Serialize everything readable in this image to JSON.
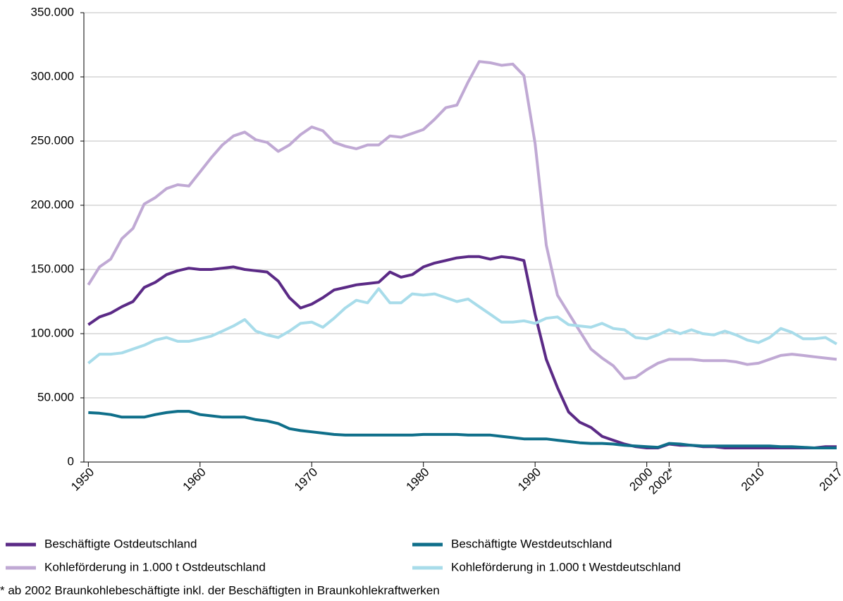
{
  "chart_data": {
    "type": "line",
    "x": [
      1950,
      1951,
      1952,
      1953,
      1954,
      1955,
      1956,
      1957,
      1958,
      1959,
      1960,
      1961,
      1962,
      1963,
      1964,
      1965,
      1966,
      1967,
      1968,
      1969,
      1970,
      1971,
      1972,
      1973,
      1974,
      1975,
      1976,
      1977,
      1978,
      1979,
      1980,
      1981,
      1982,
      1983,
      1984,
      1985,
      1986,
      1987,
      1988,
      1989,
      1990,
      1991,
      1992,
      1993,
      1994,
      1995,
      1996,
      1997,
      1998,
      1999,
      2000,
      2001,
      2002,
      2003,
      2004,
      2005,
      2006,
      2007,
      2008,
      2009,
      2010,
      2011,
      2012,
      2013,
      2014,
      2015,
      2016,
      2017
    ],
    "xlim": [
      1949.6,
      2017
    ],
    "xticks": [
      1950,
      1960,
      1970,
      1980,
      1990,
      2000,
      {
        "value": 2002,
        "label": "2002*"
      },
      2010,
      2017
    ],
    "ylim": [
      0,
      350000
    ],
    "yticks": [
      0,
      {
        "value": 50000,
        "label": "50.000"
      },
      {
        "value": 100000,
        "label": "100.000"
      },
      {
        "value": 150000,
        "label": "150.000"
      },
      {
        "value": 200000,
        "label": "200.000"
      },
      {
        "value": 250000,
        "label": "250.000"
      },
      {
        "value": 300000,
        "label": "300.000"
      },
      {
        "value": 350000,
        "label": "350.000"
      }
    ],
    "grid": true,
    "series": [
      {
        "name": "Beschäftigte Ostdeutschland",
        "color": "#5b2a86",
        "values": [
          107000,
          113000,
          116000,
          121000,
          125000,
          136000,
          140000,
          146000,
          149000,
          151000,
          150000,
          150000,
          151000,
          152000,
          150000,
          149000,
          148000,
          141000,
          128000,
          120000,
          123000,
          128000,
          134000,
          136000,
          138000,
          139000,
          140000,
          148000,
          144000,
          146000,
          152000,
          155000,
          157000,
          159000,
          160000,
          160000,
          158000,
          160000,
          159000,
          157000,
          115000,
          80000,
          58000,
          39000,
          31000,
          27000,
          20000,
          17000,
          14000,
          12000,
          11000,
          11000,
          14000,
          13000,
          13000,
          12000,
          12000,
          11000,
          11000,
          11000,
          11000,
          11000,
          11000,
          11000,
          11000,
          11000,
          12000,
          12000
        ]
      },
      {
        "name": "Beschäftigte Westdeutschland",
        "color": "#0f6f8a",
        "values": [
          38500,
          38000,
          37000,
          35000,
          35000,
          35000,
          37000,
          38500,
          39500,
          39500,
          37000,
          36000,
          35000,
          35000,
          35000,
          33000,
          32000,
          30000,
          26000,
          24500,
          23500,
          22500,
          21500,
          21000,
          21000,
          21000,
          21000,
          21000,
          21000,
          21000,
          21500,
          21500,
          21500,
          21500,
          21000,
          21000,
          21000,
          20000,
          19000,
          18000,
          18000,
          18000,
          17000,
          16000,
          15000,
          14500,
          14500,
          14000,
          13000,
          12500,
          12000,
          11500,
          14500,
          14000,
          13000,
          12500,
          12500,
          12500,
          12500,
          12500,
          12500,
          12500,
          12000,
          12000,
          11500,
          11000,
          11000,
          11000
        ]
      },
      {
        "name": "Kohleförderung in 1.000 t Ostdeutschland",
        "color": "#c0a9d4",
        "values": [
          138000,
          152000,
          158000,
          174000,
          182000,
          201000,
          206000,
          213000,
          216000,
          215000,
          226000,
          237000,
          247000,
          254000,
          257000,
          251000,
          249000,
          242000,
          247000,
          255000,
          261000,
          258000,
          249000,
          246000,
          244000,
          247000,
          247000,
          254000,
          253000,
          256000,
          259000,
          267000,
          276000,
          278000,
          296000,
          312000,
          311000,
          309000,
          310000,
          301000,
          248000,
          169000,
          130000,
          116000,
          102000,
          88000,
          81000,
          75000,
          65000,
          66000,
          72000,
          77000,
          80000,
          80000,
          80000,
          79000,
          79000,
          79000,
          78000,
          76000,
          77000,
          80000,
          83000,
          84000,
          83000,
          82000,
          81000,
          80000
        ]
      },
      {
        "name": "Kohleförderung in 1.000 t Westdeutschland",
        "color": "#a8dcea",
        "values": [
          77000,
          84000,
          84000,
          85000,
          88000,
          91000,
          95000,
          97000,
          94000,
          94000,
          96000,
          98000,
          102000,
          106000,
          111000,
          102000,
          99000,
          97000,
          102000,
          108000,
          109000,
          105000,
          112000,
          120000,
          126000,
          124000,
          135000,
          124000,
          124000,
          131000,
          130000,
          131000,
          128000,
          125000,
          127000,
          121000,
          115000,
          109000,
          109000,
          110000,
          108000,
          112000,
          113000,
          107000,
          106000,
          105000,
          108000,
          104000,
          103000,
          97000,
          96000,
          99000,
          103000,
          100000,
          103000,
          100000,
          99000,
          102000,
          99000,
          95000,
          93000,
          97000,
          104000,
          101000,
          96000,
          96000,
          97000,
          92000
        ]
      }
    ],
    "note": "* ab 2002 Braunkohlebeschäftigte inkl. der Beschäftigten in Braunkohlekraftwerken"
  }
}
